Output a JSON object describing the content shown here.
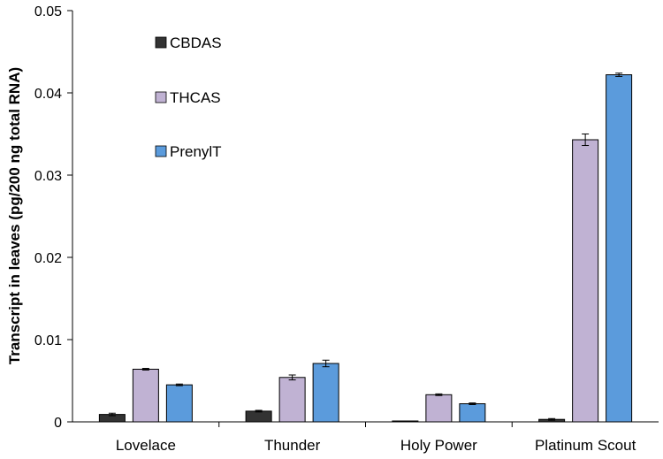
{
  "chart_data": {
    "type": "bar",
    "title": "",
    "xlabel": "",
    "ylabel": "Transcript in leaves (pg/200 ng total RNA)",
    "ylim": [
      0,
      0.05
    ],
    "yticks": [
      "0",
      "0.01",
      "0.02",
      "0.03",
      "0.04",
      "0.05"
    ],
    "ytick_values": [
      0,
      0.01,
      0.02,
      0.03,
      0.04,
      0.05
    ],
    "categories": [
      "Lovelace",
      "Thunder",
      "Holy Power",
      "Platinum Scout"
    ],
    "series": [
      {
        "name": "CBDAS",
        "color": "#333333",
        "values": [
          0.0009,
          0.0013,
          0.0001,
          0.0003
        ],
        "errors": [
          0.00015,
          0.0001,
          0.0,
          0.0001
        ]
      },
      {
        "name": "THCAS",
        "color": "#c0b2d3",
        "values": [
          0.0064,
          0.0054,
          0.0033,
          0.0343
        ],
        "errors": [
          0.0001,
          0.0003,
          0.0001,
          0.0007
        ]
      },
      {
        "name": "PrenylT",
        "color": "#5b9bdc",
        "values": [
          0.0045,
          0.0071,
          0.0022,
          0.0422
        ],
        "errors": [
          0.0001,
          0.0004,
          0.0001,
          0.0002
        ]
      }
    ],
    "grid": false,
    "legend_position": "top-left"
  }
}
